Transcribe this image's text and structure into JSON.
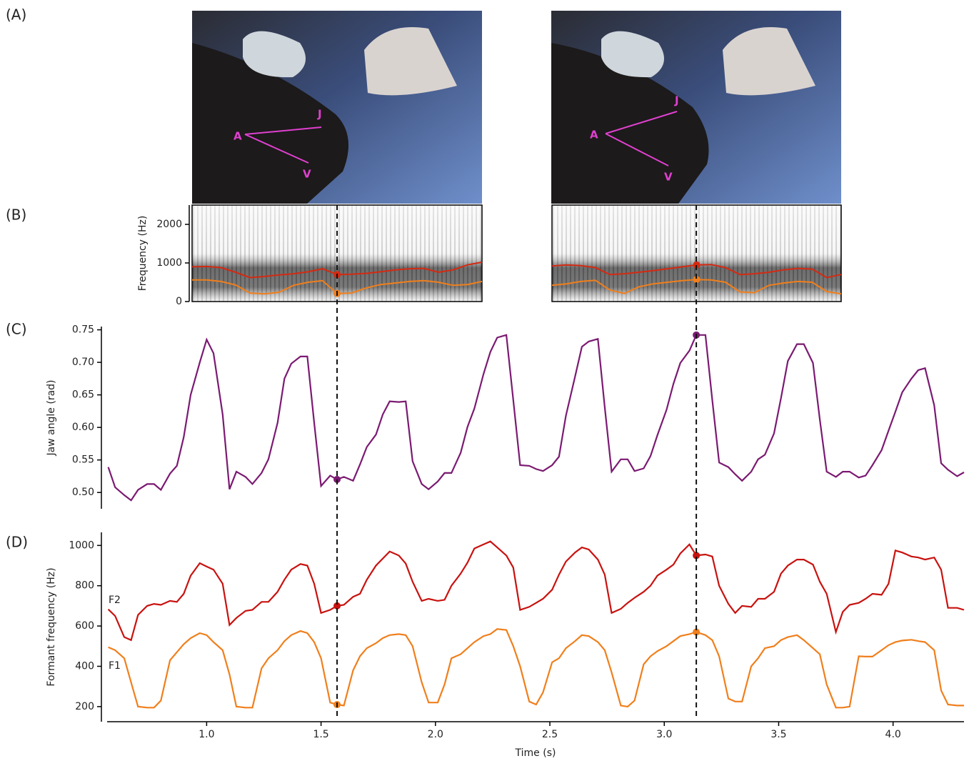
{
  "panel_labels": [
    "(A)",
    "(B)",
    "(C)",
    "(D)"
  ],
  "photos": [
    {
      "labels": [
        "A",
        "J",
        "V"
      ]
    },
    {
      "labels": [
        "A",
        "J",
        "V"
      ]
    }
  ],
  "events": [
    1.57,
    3.14
  ],
  "chart_data": [
    {
      "type": "spectrogram",
      "ylabel": "Frequency (Hz)",
      "ylim": [
        0,
        2500
      ],
      "yticks": [
        0,
        1000,
        2000
      ],
      "series": [
        {
          "color": "#d42a12",
          "values": [
            900,
            910,
            880,
            760,
            620,
            650,
            690,
            720,
            770,
            850,
            700,
            710,
            730,
            770,
            820,
            850,
            860,
            760,
            820,
            950,
            1020
          ]
        },
        {
          "color": "#f07f1c",
          "values": [
            560,
            560,
            520,
            430,
            220,
            200,
            240,
            420,
            500,
            540,
            210,
            220,
            350,
            440,
            480,
            520,
            540,
            500,
            420,
            440,
            520
          ]
        }
      ]
    },
    {
      "type": "spectrogram",
      "ylim": [
        0,
        2500
      ],
      "series": [
        {
          "color": "#d42a12",
          "values": [
            920,
            950,
            930,
            880,
            700,
            720,
            760,
            800,
            850,
            900,
            950,
            960,
            880,
            700,
            720,
            760,
            820,
            860,
            840,
            620,
            700
          ]
        },
        {
          "color": "#f07f1c",
          "values": [
            420,
            460,
            520,
            550,
            300,
            210,
            380,
            460,
            500,
            540,
            570,
            560,
            500,
            250,
            230,
            420,
            480,
            520,
            500,
            260,
            200
          ]
        }
      ]
    },
    {
      "type": "line",
      "ylabel": "Jaw angle (rad)",
      "xlim": [
        0.565,
        4.31
      ],
      "ylim": [
        0.475,
        0.755
      ],
      "yticks": [
        {
          "value": 0.5,
          "label": "0.50"
        },
        0.55,
        {
          "value": 0.6,
          "label": "0.60"
        },
        0.65,
        {
          "value": 0.7,
          "label": "0.70"
        },
        0.75
      ],
      "x": [
        0.57,
        0.6,
        0.64,
        0.67,
        0.7,
        0.74,
        0.77,
        0.8,
        0.84,
        0.87,
        0.9,
        0.93,
        0.97,
        1.0,
        1.03,
        1.07,
        1.1,
        1.13,
        1.17,
        1.2,
        1.24,
        1.27,
        1.31,
        1.34,
        1.37,
        1.41,
        1.44,
        1.47,
        1.5,
        1.54,
        1.57,
        1.6,
        1.64,
        1.67,
        1.7,
        1.74,
        1.77,
        1.8,
        1.84,
        1.87,
        1.9,
        1.94,
        1.97,
        2.01,
        2.04,
        2.07,
        2.11,
        2.14,
        2.17,
        2.21,
        2.24,
        2.27,
        2.31,
        2.34,
        2.37,
        2.41,
        2.44,
        2.47,
        2.51,
        2.54,
        2.57,
        2.61,
        2.64,
        2.67,
        2.71,
        2.74,
        2.77,
        2.81,
        2.84,
        2.87,
        2.91,
        2.94,
        2.97,
        3.01,
        3.04,
        3.07,
        3.11,
        3.14,
        3.18,
        3.21,
        3.24,
        3.28,
        3.31,
        3.34,
        3.38,
        3.41,
        3.44,
        3.48,
        3.51,
        3.54,
        3.58,
        3.61,
        3.65,
        3.68,
        3.71,
        3.75,
        3.78,
        3.81,
        3.85,
        3.88,
        3.91,
        3.95,
        3.98,
        4.01,
        4.04,
        4.08,
        4.11,
        4.14,
        4.18,
        4.21,
        4.24,
        4.28,
        4.31
      ],
      "series": [
        {
          "color": "#7b1a72",
          "values": [
            0.539,
            0.508,
            0.496,
            0.488,
            0.504,
            0.513,
            0.513,
            0.504,
            0.529,
            0.541,
            0.585,
            0.65,
            0.7,
            0.735,
            0.714,
            0.62,
            0.505,
            0.532,
            0.524,
            0.513,
            0.53,
            0.551,
            0.607,
            0.675,
            0.698,
            0.709,
            0.709,
            0.607,
            0.51,
            0.526,
            0.52,
            0.524,
            0.518,
            0.543,
            0.57,
            0.589,
            0.62,
            0.64,
            0.639,
            0.64,
            0.548,
            0.513,
            0.505,
            0.517,
            0.53,
            0.53,
            0.561,
            0.601,
            0.629,
            0.682,
            0.716,
            0.738,
            0.742,
            0.642,
            0.542,
            0.541,
            0.536,
            0.533,
            0.542,
            0.555,
            0.618,
            0.678,
            0.724,
            0.732,
            0.736,
            0.631,
            0.532,
            0.551,
            0.551,
            0.533,
            0.537,
            0.556,
            0.588,
            0.627,
            0.667,
            0.699,
            0.718,
            0.742,
            0.742,
            0.642,
            0.546,
            0.539,
            0.528,
            0.518,
            0.532,
            0.551,
            0.558,
            0.591,
            0.645,
            0.702,
            0.728,
            0.728,
            0.699,
            0.612,
            0.532,
            0.524,
            0.532,
            0.532,
            0.523,
            0.526,
            0.542,
            0.565,
            0.595,
            0.624,
            0.654,
            0.675,
            0.688,
            0.691,
            0.634,
            0.545,
            0.535,
            0.525,
            0.531
          ]
        }
      ]
    },
    {
      "type": "line",
      "ylabel": "Formant frequency (Hz)",
      "xlabel": "Time (s)",
      "xlim": [
        0.565,
        4.31
      ],
      "ylim": [
        125,
        1065
      ],
      "yticks": [
        200,
        400,
        600,
        800,
        1000
      ],
      "xticks": [
        {
          "value": 1,
          "label": "1.0"
        },
        1.5,
        {
          "value": 2,
          "label": "2.0"
        },
        2.5,
        {
          "value": 3,
          "label": "3.0"
        },
        3.5,
        {
          "value": 4,
          "label": "4.0"
        }
      ],
      "x": [
        0.57,
        0.6,
        0.64,
        0.67,
        0.7,
        0.74,
        0.77,
        0.8,
        0.84,
        0.87,
        0.9,
        0.93,
        0.97,
        1.0,
        1.03,
        1.07,
        1.1,
        1.13,
        1.17,
        1.2,
        1.24,
        1.27,
        1.31,
        1.34,
        1.37,
        1.41,
        1.44,
        1.47,
        1.5,
        1.54,
        1.57,
        1.6,
        1.64,
        1.67,
        1.7,
        1.74,
        1.77,
        1.8,
        1.84,
        1.87,
        1.9,
        1.94,
        1.97,
        2.01,
        2.04,
        2.07,
        2.11,
        2.14,
        2.17,
        2.21,
        2.24,
        2.27,
        2.31,
        2.34,
        2.37,
        2.41,
        2.44,
        2.47,
        2.51,
        2.54,
        2.57,
        2.61,
        2.64,
        2.67,
        2.71,
        2.74,
        2.77,
        2.81,
        2.84,
        2.87,
        2.91,
        2.94,
        2.97,
        3.01,
        3.04,
        3.07,
        3.11,
        3.14,
        3.18,
        3.21,
        3.24,
        3.28,
        3.31,
        3.34,
        3.38,
        3.41,
        3.44,
        3.48,
        3.51,
        3.54,
        3.58,
        3.61,
        3.65,
        3.68,
        3.71,
        3.75,
        3.78,
        3.81,
        3.85,
        3.88,
        3.91,
        3.95,
        3.98,
        4.01,
        4.04,
        4.08,
        4.11,
        4.14,
        4.18,
        4.21,
        4.24,
        4.28,
        4.31
      ],
      "series": [
        {
          "name": "F1",
          "color": "#f07f1c",
          "values": [
            495,
            480,
            440,
            320,
            200,
            195,
            195,
            230,
            430,
            470,
            510,
            540,
            565,
            555,
            520,
            480,
            360,
            200,
            195,
            195,
            390,
            440,
            480,
            525,
            555,
            575,
            565,
            520,
            440,
            220,
            210,
            205,
            380,
            450,
            490,
            515,
            540,
            555,
            560,
            555,
            500,
            320,
            220,
            220,
            310,
            440,
            460,
            490,
            520,
            550,
            560,
            585,
            580,
            500,
            400,
            225,
            210,
            270,
            420,
            440,
            490,
            525,
            555,
            550,
            520,
            480,
            370,
            205,
            200,
            230,
            410,
            450,
            475,
            500,
            525,
            550,
            560,
            570,
            555,
            530,
            450,
            240,
            225,
            225,
            400,
            440,
            490,
            500,
            530,
            545,
            555,
            530,
            490,
            460,
            310,
            195,
            195,
            200,
            450,
            448,
            448,
            480,
            505,
            520,
            528,
            532,
            525,
            520,
            480,
            280,
            210,
            205,
            205
          ]
        },
        {
          "name": "F2",
          "color": "#c8120f",
          "values": [
            683,
            650,
            545,
            530,
            655,
            700,
            710,
            705,
            725,
            720,
            760,
            850,
            912,
            895,
            880,
            810,
            605,
            640,
            675,
            680,
            720,
            720,
            770,
            830,
            880,
            908,
            900,
            810,
            665,
            680,
            700,
            705,
            745,
            760,
            830,
            900,
            935,
            970,
            950,
            910,
            820,
            725,
            735,
            725,
            730,
            800,
            860,
            915,
            985,
            1005,
            1020,
            990,
            950,
            890,
            680,
            695,
            715,
            735,
            780,
            855,
            920,
            965,
            990,
            980,
            930,
            855,
            665,
            685,
            715,
            740,
            770,
            800,
            850,
            880,
            905,
            960,
            1005,
            950,
            955,
            945,
            800,
            710,
            665,
            700,
            695,
            735,
            735,
            770,
            860,
            900,
            930,
            930,
            905,
            820,
            760,
            570,
            670,
            705,
            715,
            735,
            760,
            755,
            810,
            975,
            965,
            945,
            940,
            930,
            940,
            880,
            690,
            690,
            680
          ]
        }
      ]
    }
  ]
}
